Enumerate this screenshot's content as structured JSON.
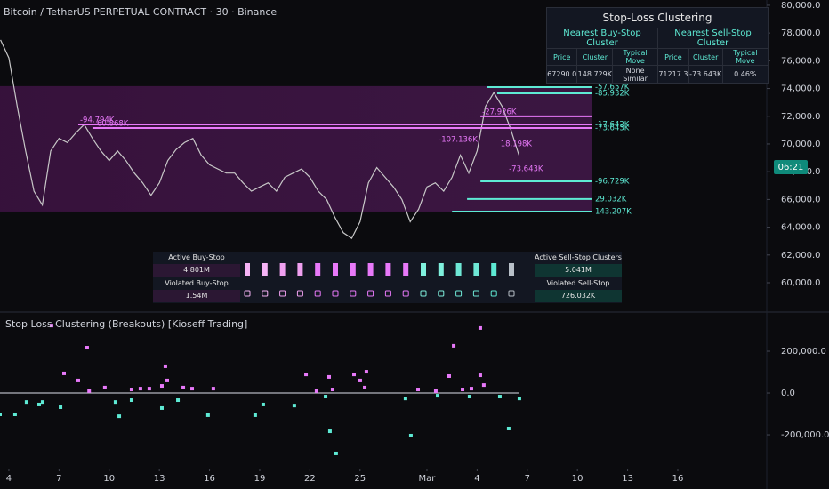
{
  "header": {
    "title": "Bitcoin / TetherUS PERPETUAL CONTRACT · 30 · Binance",
    "countdown": "06:21"
  },
  "chart_data": [
    {
      "type": "line",
      "color": "#c8c8c8",
      "x": [
        -0.5,
        0,
        0.5,
        1,
        1.5,
        2,
        2.5,
        3,
        3.5,
        4,
        4.5,
        5,
        5.5,
        6,
        6.5,
        7,
        7.5,
        8,
        8.5,
        9,
        9.5,
        10,
        10.5,
        11,
        11.5,
        12,
        12.5,
        13,
        13.5,
        14,
        14.5,
        15,
        15.5,
        16,
        16.5,
        17,
        17.5,
        18,
        18.5,
        19,
        19.5,
        20,
        20.5,
        21,
        21.5,
        22,
        22.5,
        23,
        23.5,
        24,
        24.5,
        25,
        25.5,
        26,
        26.5,
        27,
        27.5,
        28,
        28.5,
        29,
        29.5,
        30,
        30.5
      ],
      "values": [
        77500,
        76200,
        72700,
        69500,
        66600,
        65600,
        69500,
        70400,
        70100,
        70800,
        71400,
        70400,
        69500,
        68800,
        69500,
        68800,
        67900,
        67200,
        66300,
        67200,
        68800,
        69600,
        70100,
        70400,
        69200,
        68500,
        68200,
        67900,
        67900,
        67200,
        66600,
        66900,
        67200,
        66600,
        67600,
        67900,
        68200,
        67600,
        66600,
        66000,
        64700,
        63600,
        63200,
        64400,
        67200,
        68300,
        67600,
        66900,
        66000,
        64400,
        65300,
        66900,
        67200,
        66600,
        67600,
        69200,
        67900,
        69500,
        72700,
        73700,
        72700,
        71100,
        69200
      ],
      "xlim": [
        -0.53,
        45.32
      ],
      "ylim": [
        57950,
        80380
      ],
      "yticks": [
        {
          "value": 60000,
          "label": "60,000.0"
        },
        {
          "value": 62000,
          "label": "62,000.0"
        },
        {
          "value": 64000,
          "label": "64,000.0"
        },
        {
          "value": 66000,
          "label": "66,000.0"
        },
        {
          "value": 68000,
          "label": "68,000.0"
        },
        {
          "value": 70000,
          "label": "70,000.0"
        },
        {
          "value": 72000,
          "label": "72,000.0"
        },
        {
          "value": 74000,
          "label": "74,000.0"
        },
        {
          "value": 76000,
          "label": "76,000.0"
        },
        {
          "value": 78000,
          "label": "78,000.0"
        },
        {
          "value": 80000,
          "label": "80,000.0"
        }
      ],
      "zone": {
        "top": 74170,
        "bottom": 65130,
        "to": 34.84
      },
      "levels": [
        {
          "label": "-57.657K",
          "price": 74100,
          "from": 28.6,
          "color": "#5eead4"
        },
        {
          "label": "-85.932K",
          "price": 73650,
          "from": 29.2,
          "color": "#5eead4"
        },
        {
          "label": "-17.642K",
          "price": 71410,
          "from": 29.8,
          "color": "#5eead4"
        },
        {
          "label": "-73.643K",
          "price": 71150,
          "from": 29.8,
          "color": "#5eead4"
        },
        {
          "label": "-96.729K",
          "price": 67310,
          "from": 28.2,
          "color": "#5eead4"
        },
        {
          "label": "29.032K",
          "price": 66030,
          "from": 27.4,
          "color": "#5eead4"
        },
        {
          "label": "143.207K",
          "price": 65130,
          "from": 26.5,
          "color": "#5eead4"
        },
        {
          "label": "-94.794K",
          "price": 71410,
          "from": 4.15,
          "color": "#e879f9"
        },
        {
          "label": "-60.868K",
          "price": 71150,
          "from": 5.0,
          "color": "#e879f9"
        },
        {
          "label": "-27.926K",
          "price": 71990,
          "from": 28.2,
          "color": "#e879f9"
        }
      ],
      "annotations": [
        {
          "text": "-107.136K",
          "x": 25.7,
          "price": 70320
        },
        {
          "text": "18.198K",
          "x": 29.4,
          "price": 70000
        },
        {
          "text": "-73.643K",
          "x": 29.9,
          "price": 68200
        }
      ],
      "annotation_color": "#e879f9"
    },
    {
      "type": "scatter",
      "title": "Stop Loss Clustering (Breakouts) [Kioseff Trading]",
      "xlim": [
        -0.53,
        45.32
      ],
      "ylim": [
        -353000,
        383000
      ],
      "xticks": [
        {
          "value": 0,
          "label": "4"
        },
        {
          "value": 3,
          "label": "7"
        },
        {
          "value": 6,
          "label": "10"
        },
        {
          "value": 9,
          "label": "13"
        },
        {
          "value": 12,
          "label": "16"
        },
        {
          "value": 15,
          "label": "19"
        },
        {
          "value": 18,
          "label": "22"
        },
        {
          "value": 21,
          "label": "25"
        },
        {
          "value": 25,
          "label": "Mar"
        },
        {
          "value": 28,
          "label": "4"
        },
        {
          "value": 31,
          "label": "7"
        },
        {
          "value": 34,
          "label": "10"
        },
        {
          "value": 37,
          "label": "13"
        },
        {
          "value": 40,
          "label": "16"
        }
      ],
      "yticks": [
        {
          "value": 200000,
          "label": "200,000.0"
        },
        {
          "value": 0,
          "label": "0.0"
        },
        {
          "value": -200000,
          "label": "-200,000.0"
        }
      ],
      "zero_line_color": "#b2b5be",
      "series": [
        {
          "color": "#e879f9",
          "x": [
            2.55,
            4.68,
            3.3,
            4.15,
            4.8,
            5.74,
            7.34,
            7.87,
            8.4,
            9.15,
            9.36,
            9.47,
            10.43,
            10.96,
            12.23,
            17.77,
            18.4,
            19.15,
            19.36,
            20.64,
            21.01,
            21.28,
            21.38,
            24.47,
            25.53,
            26.33,
            26.6,
            27.13,
            27.66,
            28.19,
            28.19,
            28.4
          ],
          "values": [
            323000,
            217000,
            94000,
            60000,
            9000,
            26000,
            17000,
            21000,
            21000,
            34000,
            128000,
            60000,
            26000,
            21000,
            21000,
            89000,
            9000,
            77000,
            17000,
            89000,
            60000,
            26000,
            102000,
            17000,
            9000,
            81000,
            226000,
            17000,
            21000,
            311000,
            85000,
            38000
          ]
        },
        {
          "color": "#5eead4",
          "x": [
            -0.53,
            0.37,
            1.06,
            1.81,
            2.02,
            3.09,
            6.38,
            6.6,
            7.34,
            9.15,
            10.11,
            11.91,
            14.73,
            15.21,
            17.07,
            18.94,
            19.2,
            19.57,
            23.72,
            24.04,
            25.64,
            27.55,
            29.36,
            29.89,
            30.53
          ],
          "values": [
            -102000,
            -102000,
            -43000,
            -55000,
            -43000,
            -68000,
            -43000,
            -111000,
            -34000,
            -72000,
            -34000,
            -106000,
            -106000,
            -55000,
            -60000,
            -17000,
            -183000,
            -289000,
            -26000,
            -204000,
            -13000,
            -17000,
            -17000,
            -170000,
            -26000
          ]
        }
      ]
    }
  ],
  "table": {
    "title": "Stop-Loss Clustering",
    "groups": [
      "Nearest Buy-Stop Cluster",
      "Nearest Sell-Stop Cluster"
    ],
    "columns": [
      "Price",
      "Cluster",
      "Typical Move",
      "Price",
      "Cluster",
      "Typical Move"
    ],
    "row": [
      "67290.0",
      "148.729K",
      "None Similar",
      "71217.3",
      "-73.643K",
      "0.46%"
    ]
  },
  "dashboard": {
    "left": [
      "Active Buy-Stop Clusters",
      "4.801M",
      "Violated Buy-Stop Clusters",
      "1.54M"
    ],
    "right": [
      "Active Sell-Stop Clusters",
      "5.041M",
      "Violated Sell-Stop Clusters",
      "726.032K"
    ]
  }
}
